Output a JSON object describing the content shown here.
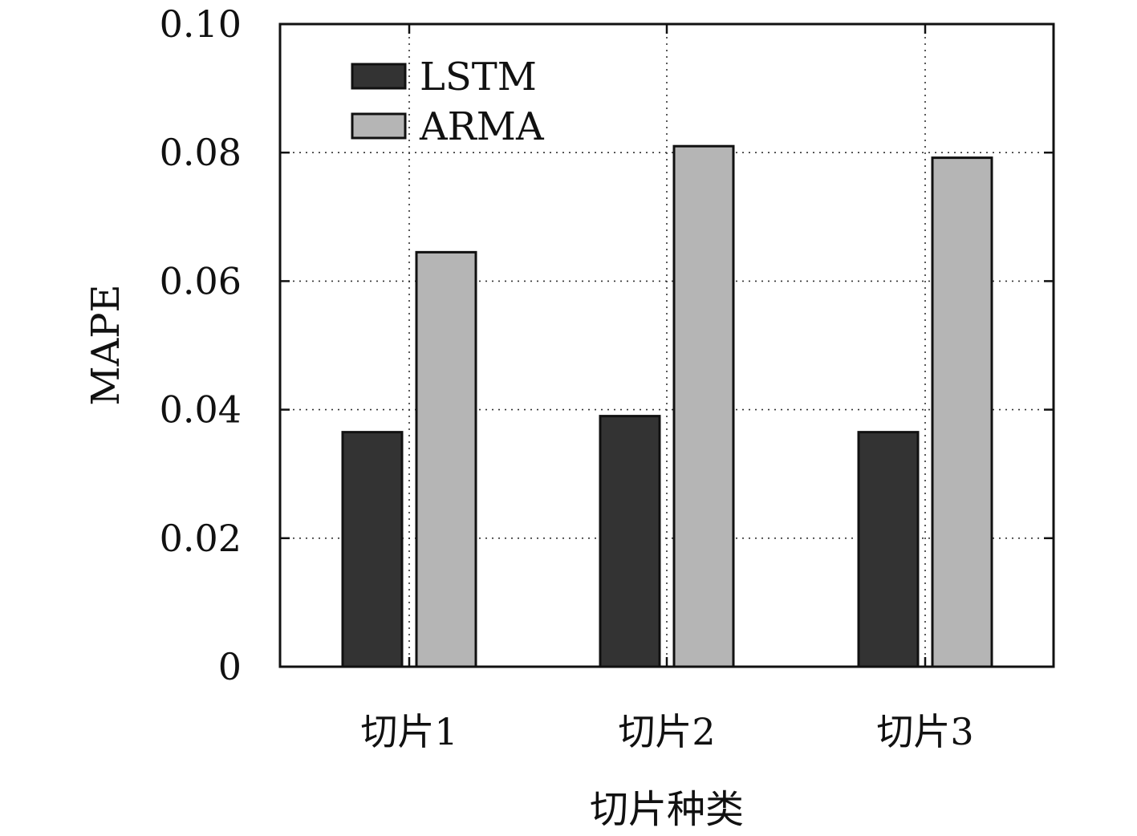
{
  "chart_data": {
    "type": "bar",
    "xlabel": "切片种类",
    "ylabel": "MAPE",
    "categories": [
      "切片1",
      "切片2",
      "切片3"
    ],
    "series": [
      {
        "name": "LSTM",
        "values": [
          0.0365,
          0.039,
          0.0365
        ],
        "color": "#333333"
      },
      {
        "name": "ARMA",
        "values": [
          0.0645,
          0.081,
          0.0792
        ],
        "color": "#b5b5b5"
      }
    ],
    "ylim": [
      0,
      0.1
    ],
    "yticks": [
      "0",
      "0.02",
      "0.04",
      "0.06",
      "0.08",
      "0.10"
    ],
    "grid": true,
    "legend_position": "top-left"
  }
}
